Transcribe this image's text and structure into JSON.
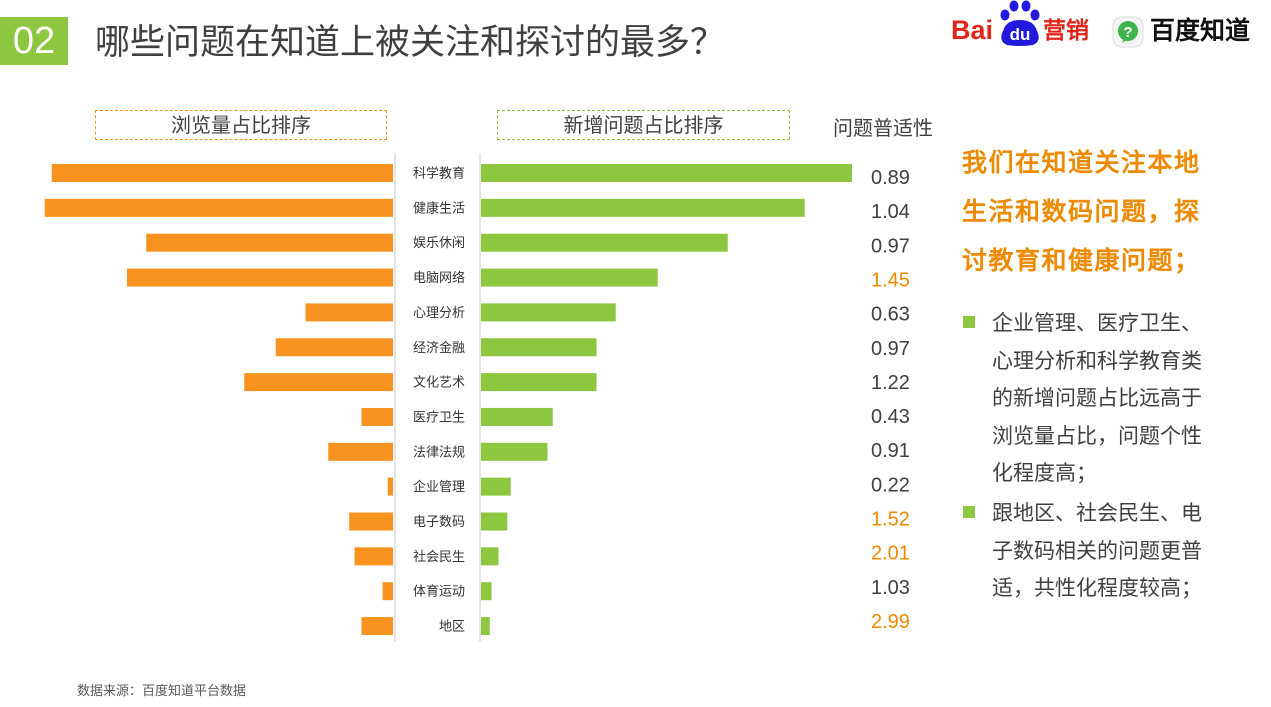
{
  "slide": {
    "number": "02",
    "title": "哪些问题在知道上被关注和探讨的最多？"
  },
  "logos": {
    "baidu_marketing": {
      "part1": "Bai",
      "part2": "du",
      "part3": "营销"
    },
    "baidu_zhidao": {
      "icon": "question-bubble-icon",
      "icon_glyph": "?",
      "name": "百度知道"
    }
  },
  "colors": {
    "green": "#8DC63F",
    "orange": "#F7931E",
    "highlight_text": "#EE8A00",
    "text": "#404040",
    "logo_red": "#E1251B",
    "logo_blue": "#2319DC"
  },
  "chart_data": {
    "type": "bar",
    "orientation": "horizontal",
    "grid": false,
    "categories": [
      "科学教育",
      "健康生活",
      "娱乐休闲",
      "电脑网络",
      "心理分析",
      "经济金融",
      "文化艺术",
      "医疗卫生",
      "法律法规",
      "企业管理",
      "电子数码",
      "社会民生",
      "体育运动",
      "地区"
    ],
    "series": [
      {
        "name": "浏览量占比排序",
        "side": "left",
        "color": "#F7931E",
        "values": [
          19.5,
          19.9,
          14.1,
          15.2,
          5.0,
          6.7,
          8.5,
          1.8,
          3.7,
          0.3,
          2.5,
          2.2,
          0.6,
          1.8
        ]
      },
      {
        "name": "新增问题占比排序",
        "side": "right",
        "color": "#8DC63F",
        "values": [
          21.2,
          18.5,
          14.1,
          10.1,
          7.7,
          6.6,
          6.6,
          4.1,
          3.8,
          1.7,
          1.5,
          1.0,
          0.6,
          0.5
        ]
      }
    ],
    "generality": {
      "label": "问题普适性",
      "values": [
        0.89,
        1.04,
        0.97,
        1.45,
        0.63,
        0.97,
        1.22,
        0.43,
        0.91,
        0.22,
        1.52,
        2.01,
        1.03,
        2.99
      ],
      "highlighted": [
        false,
        false,
        false,
        true,
        false,
        false,
        false,
        false,
        false,
        false,
        true,
        true,
        false,
        true
      ]
    }
  },
  "insight": {
    "headline_lines": [
      "我们在知道关注本地",
      "生活和数码问题，探",
      "讨教育和健康问题；"
    ],
    "bullets": [
      {
        "lines": [
          "企业管理、医疗卫生、",
          "心理分析和科学教育类",
          "的新增问题占比远高于",
          "浏览量占比，问题个性",
          "化程度高；"
        ]
      },
      {
        "lines": [
          "跟地区、社会民生、电",
          "子数码相关的问题更普",
          "适，共性化程度较高；"
        ]
      }
    ]
  },
  "footer": {
    "source": "数据来源：百度知道平台数据"
  }
}
